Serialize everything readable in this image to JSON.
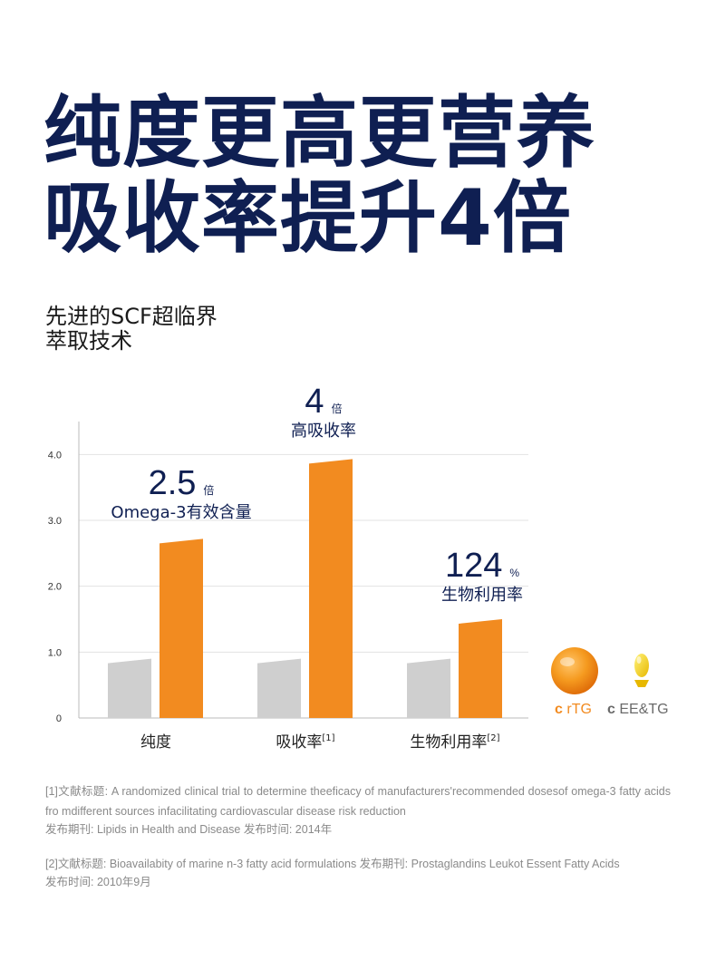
{
  "headline": {
    "line1": "纯度更高更营养",
    "line2": "吸收率提升4倍"
  },
  "subtitle": {
    "line1": "先进的SCF超临界",
    "line2": "萃取技术"
  },
  "chart_data": {
    "type": "bar",
    "categories": [
      "纯度",
      "吸收率",
      "生物利用率"
    ],
    "category_refs": [
      "",
      "[1]",
      "[2]"
    ],
    "series": [
      {
        "name": "EE&TG",
        "values": [
          0.9,
          0.9,
          0.9
        ],
        "color": "#cfcfcf"
      },
      {
        "name": "rTG",
        "values": [
          2.72,
          3.93,
          1.5
        ],
        "color": "#f28b20"
      }
    ],
    "ylim": [
      0,
      4.5
    ],
    "yticks": [
      "0",
      "1.0",
      "2.0",
      "3.0",
      "4.0"
    ],
    "grid": true,
    "annotations": [
      {
        "value": "2.5",
        "unit": "倍",
        "label": "Omega-3有效含量"
      },
      {
        "value": "4",
        "unit": "倍",
        "label": "高吸收率"
      },
      {
        "value": "124",
        "unit": "%",
        "label": "生物利用率"
      }
    ],
    "legend_placement": "right"
  },
  "legend": {
    "rtg": {
      "icon": "orange-softgel-icon",
      "marker": "c",
      "label": "rTG",
      "color": "#f28b20"
    },
    "eetg": {
      "icon": "fish-oil-capsule-icon",
      "marker": "c",
      "label": "EE&TG",
      "color": "#6a6a6a"
    }
  },
  "references": {
    "ref1": "[1]文献标题: A randomized clinical trial to determine theeficacy of manufacturers'recommended dosesof omega-3 fatty acids fro mdifferent sources infacilitating cardiovascular disease risk reduction",
    "ref1_meta": "发布期刊: Lipids in Health and Disease    发布时间: 2014年",
    "ref2": "[2]文献标题: Bioavailabity of marine n-3 fatty acid formulations    发布期刊: Prostaglandins Leukot Essent Fatty Acids",
    "ref2_meta": "发布时间: 2010年9月"
  }
}
